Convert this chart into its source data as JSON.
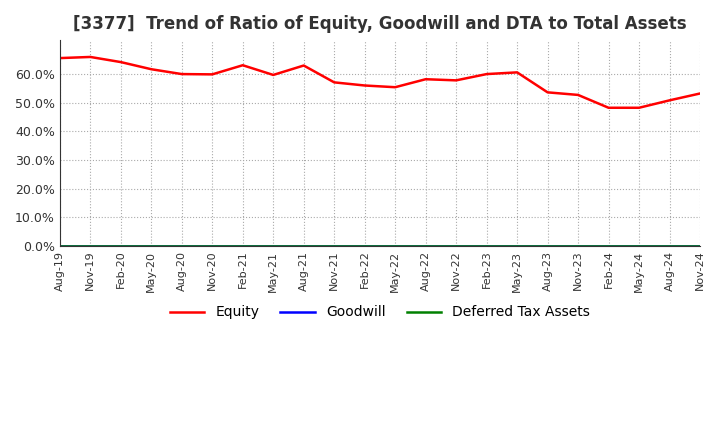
{
  "title": "[3377]  Trend of Ratio of Equity, Goodwill and DTA to Total Assets",
  "title_fontsize": 12,
  "ylim": [
    0.0,
    0.72
  ],
  "yticks": [
    0.0,
    0.1,
    0.2,
    0.3,
    0.4,
    0.5,
    0.6
  ],
  "ytick_labels": [
    "0.0%",
    "10.0%",
    "20.0%",
    "30.0%",
    "40.0%",
    "50.0%",
    "60.0%"
  ],
  "x_labels": [
    "Aug-19",
    "Nov-19",
    "Feb-20",
    "May-20",
    "Aug-20",
    "Nov-20",
    "Feb-21",
    "May-21",
    "Aug-21",
    "Nov-21",
    "Feb-22",
    "May-22",
    "Aug-22",
    "Nov-22",
    "Feb-23",
    "May-23",
    "Aug-23",
    "Nov-23",
    "Feb-24",
    "May-24",
    "Aug-24",
    "Nov-24"
  ],
  "equity": [
    0.657,
    0.661,
    0.643,
    0.618,
    0.601,
    0.6,
    0.632,
    0.598,
    0.631,
    0.572,
    0.561,
    0.555,
    0.583,
    0.579,
    0.601,
    0.607,
    0.537,
    0.528,
    0.483,
    0.483,
    0.509,
    0.533
  ],
  "goodwill": [
    0.0,
    0.0,
    0.0,
    0.0,
    0.0,
    0.0,
    0.0,
    0.0,
    0.0,
    0.0,
    0.0,
    0.0,
    0.0,
    0.0,
    0.0,
    0.0,
    0.0,
    0.0,
    0.0,
    0.0,
    0.0,
    0.0
  ],
  "dta": [
    0.0,
    0.0,
    0.0,
    0.0,
    0.0,
    0.0,
    0.0,
    0.0,
    0.0,
    0.0,
    0.0,
    0.0,
    0.0,
    0.0,
    0.0,
    0.0,
    0.0,
    0.0,
    0.0,
    0.0,
    0.0,
    0.0
  ],
  "equity_color": "#ff0000",
  "goodwill_color": "#0000ff",
  "dta_color": "#008000",
  "background_color": "#ffffff",
  "plot_bg_color": "#ffffff",
  "grid_color": "#aaaaaa",
  "legend_labels": [
    "Equity",
    "Goodwill",
    "Deferred Tax Assets"
  ]
}
